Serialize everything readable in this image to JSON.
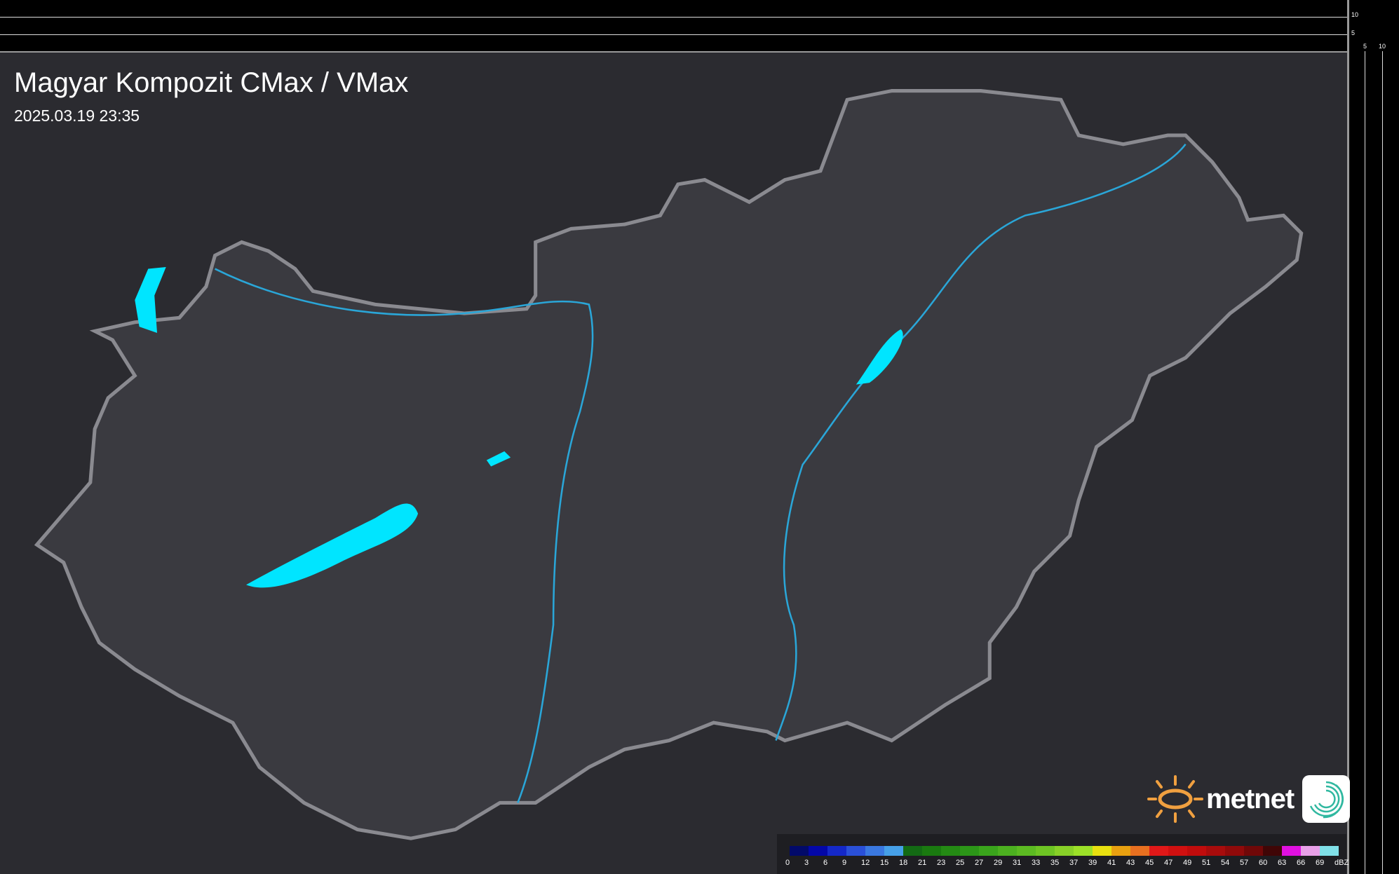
{
  "header": {
    "title": "Magyar Kompozit CMax / VMax",
    "timestamp": "2025.03.19 23:35"
  },
  "profile_axes": {
    "top_ticks": [
      "10",
      "5"
    ],
    "right_ticks": [
      "5",
      "10"
    ]
  },
  "legend": {
    "unit": "dBZ",
    "labels": [
      "0",
      "3",
      "6",
      "9",
      "12",
      "15",
      "18",
      "21",
      "23",
      "25",
      "27",
      "29",
      "31",
      "33",
      "35",
      "37",
      "39",
      "41",
      "43",
      "45",
      "47",
      "49",
      "51",
      "54",
      "57",
      "60",
      "63",
      "66",
      "69"
    ],
    "colors": [
      "#020a6a",
      "#0307a8",
      "#1428c8",
      "#2a50d8",
      "#3a78e0",
      "#46a0e8",
      "#136a14",
      "#1a7a10",
      "#248a14",
      "#2c9618",
      "#3aa41c",
      "#4cb020",
      "#5cba22",
      "#6ec424",
      "#88d028",
      "#9ce028",
      "#e8e010",
      "#e8a010",
      "#e87020",
      "#e01818",
      "#d01010",
      "#c00c0c",
      "#a80c0c",
      "#900a0a",
      "#700808",
      "#400606",
      "#e010e0",
      "#e8a0e8",
      "#80e0e8"
    ]
  },
  "logo": {
    "text": "metnet"
  },
  "colors": {
    "background": "#2b2b30",
    "country": "#3a3a40",
    "border": "#8a8a90",
    "water": "#00e5ff",
    "river": "#2aa6d8"
  }
}
